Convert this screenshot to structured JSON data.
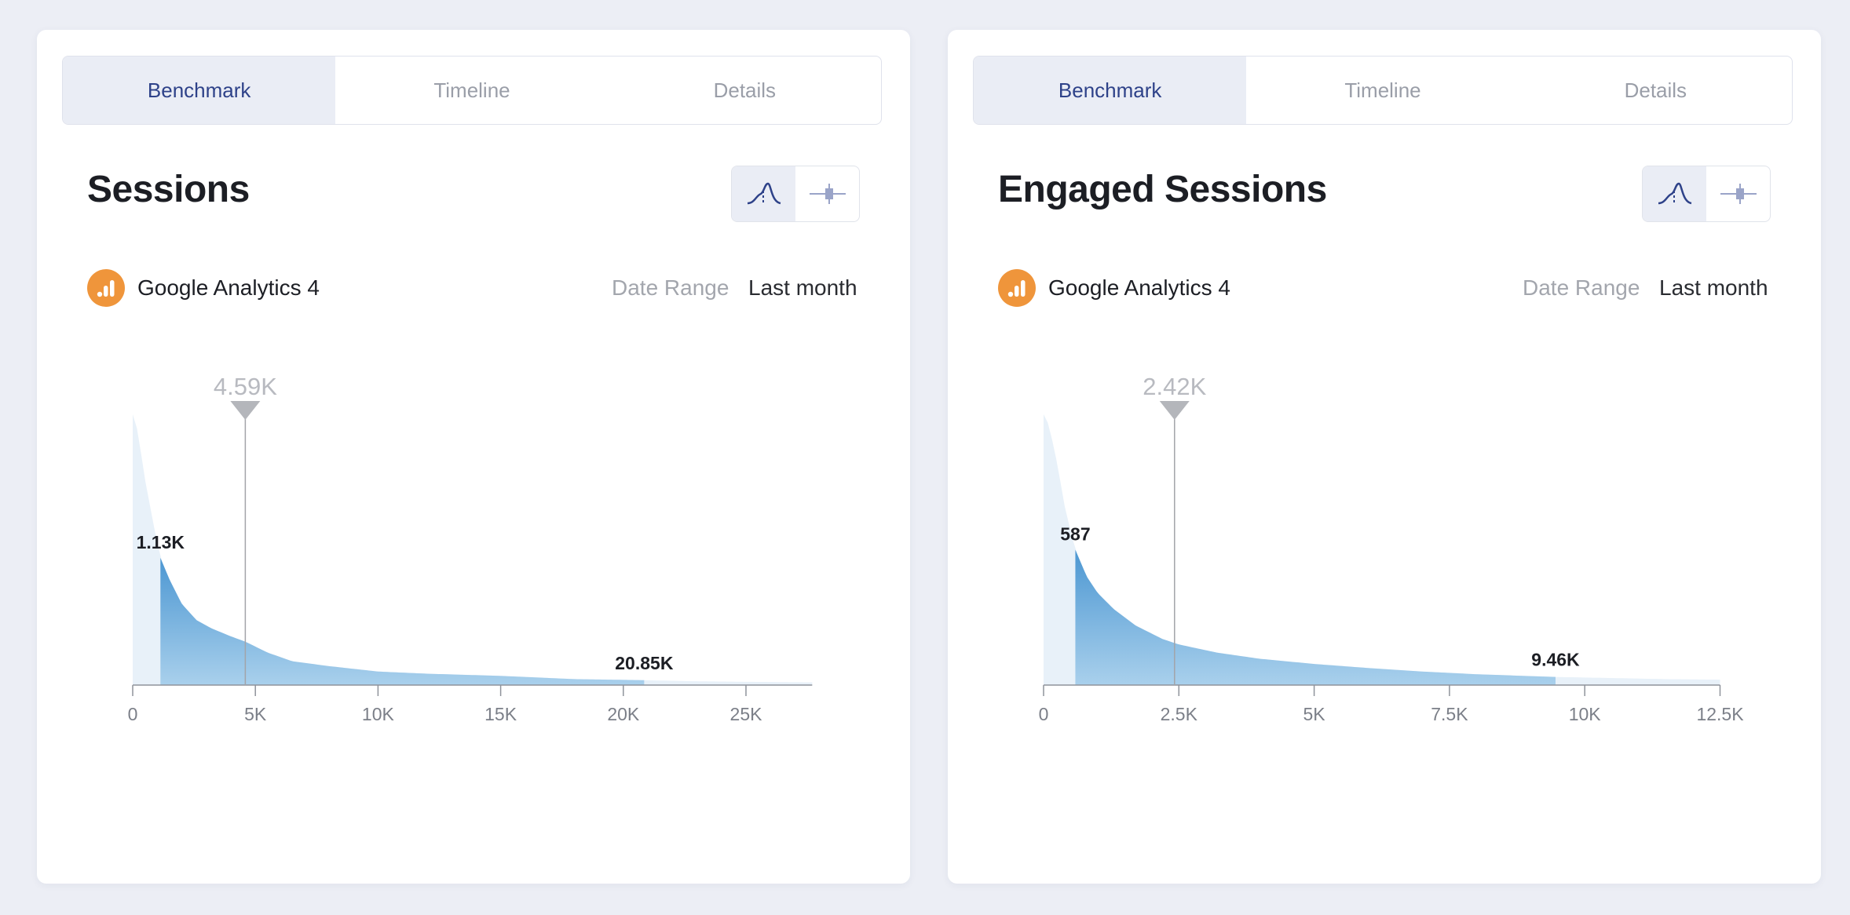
{
  "colors": {
    "accent": "#2e4289",
    "ga_orange": "#ef953b",
    "dist_light": "#e8f1f9",
    "dist_dark": "#4c97d2"
  },
  "panels": [
    {
      "tabs": [
        {
          "label": "Benchmark",
          "active": true
        },
        {
          "label": "Timeline",
          "active": false
        },
        {
          "label": "Details",
          "active": false
        }
      ],
      "title": "Sessions",
      "source": {
        "icon": "google-analytics-icon",
        "label": "Google Analytics 4"
      },
      "date_range": {
        "label": "Date Range",
        "value": "Last month"
      },
      "view_toggle": [
        {
          "icon": "distribution-curve-icon",
          "active": true
        },
        {
          "icon": "box-plot-icon",
          "active": false
        }
      ],
      "chart_data": {
        "type": "area",
        "x_ticks": [
          0,
          5000,
          10000,
          15000,
          20000,
          25000
        ],
        "x_tick_labels": [
          "0",
          "5K",
          "10K",
          "15K",
          "20K",
          "25K"
        ],
        "x_max": 27700,
        "distribution": {
          "x": [
            0,
            200,
            500,
            900,
            1130,
            1500,
            2000,
            2600,
            3200,
            4000,
            4600,
            5500,
            6500,
            8000,
            10000,
            12000,
            15000,
            18000,
            20850,
            23000,
            25000,
            27700
          ],
          "density": [
            1.0,
            0.94,
            0.76,
            0.57,
            0.47,
            0.39,
            0.3,
            0.24,
            0.21,
            0.18,
            0.16,
            0.12,
            0.088,
            0.07,
            0.05,
            0.042,
            0.034,
            0.022,
            0.018,
            0.014,
            0.012,
            0.01
          ]
        },
        "band_low": {
          "value": 1130,
          "label": "1.13K"
        },
        "band_high": {
          "value": 20850,
          "label": "20.85K"
        },
        "marker": {
          "value": 4590,
          "label": "4.59K"
        }
      }
    },
    {
      "tabs": [
        {
          "label": "Benchmark",
          "active": true
        },
        {
          "label": "Timeline",
          "active": false
        },
        {
          "label": "Details",
          "active": false
        }
      ],
      "title": "Engaged Sessions",
      "source": {
        "icon": "google-analytics-icon",
        "label": "Google Analytics 4"
      },
      "date_range": {
        "label": "Date Range",
        "value": "Last month"
      },
      "view_toggle": [
        {
          "icon": "distribution-curve-icon",
          "active": true
        },
        {
          "icon": "box-plot-icon",
          "active": false
        }
      ],
      "chart_data": {
        "type": "area",
        "x_ticks": [
          0,
          2500,
          5000,
          7500,
          10000,
          12500
        ],
        "x_tick_labels": [
          "0",
          "2.5K",
          "5K",
          "7.5K",
          "10K",
          "12.5K"
        ],
        "x_max": 12500,
        "distribution": {
          "x": [
            0,
            100,
            250,
            400,
            587,
            800,
            1000,
            1300,
            1700,
            2200,
            2500,
            3200,
            4000,
            5000,
            6000,
            7000,
            8000,
            9460,
            10500,
            11500,
            12500
          ],
          "density": [
            1.0,
            0.96,
            0.82,
            0.65,
            0.5,
            0.4,
            0.34,
            0.28,
            0.22,
            0.17,
            0.15,
            0.12,
            0.097,
            0.078,
            0.063,
            0.05,
            0.04,
            0.03,
            0.026,
            0.022,
            0.02
          ]
        },
        "band_low": {
          "value": 587,
          "label": "587"
        },
        "band_high": {
          "value": 9460,
          "label": "9.46K"
        },
        "marker": {
          "value": 2420,
          "label": "2.42K"
        }
      }
    }
  ]
}
